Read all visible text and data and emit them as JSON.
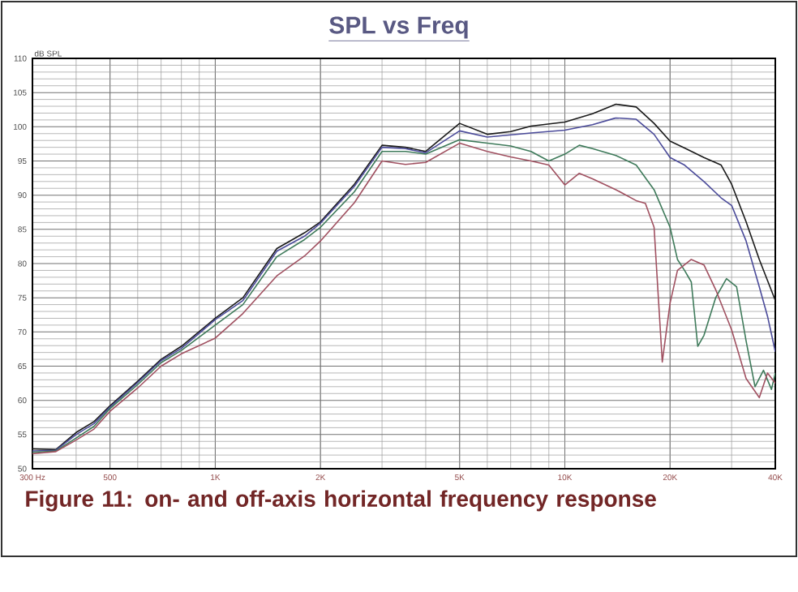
{
  "chart_data": {
    "type": "line",
    "title": "SPL vs Freq",
    "ylabel": "dB SPL",
    "annotations": [
      "Figure 11: on- and off-axis horizontal frequency response"
    ],
    "log": "x",
    "grid": true,
    "marker": "none",
    "line_style": "solid",
    "xlim": [
      300,
      40000
    ],
    "ylim": [
      50,
      110
    ],
    "xticks": [
      {
        "value": 300,
        "label": "300 Hz"
      },
      500,
      {
        "value": 1000,
        "label": "1K"
      },
      {
        "value": 2000,
        "label": "2K"
      },
      {
        "value": 5000,
        "label": "5K"
      },
      {
        "value": 10000,
        "label": "10K"
      },
      {
        "value": 20000,
        "label": "20K"
      },
      {
        "value": 40000,
        "label": "40K"
      }
    ],
    "yticks": [
      50,
      55,
      60,
      65,
      70,
      75,
      80,
      85,
      90,
      95,
      100,
      105,
      110
    ],
    "series": [
      {
        "color": "#1a1a1a",
        "x": [
          300,
          350,
          400,
          450,
          500,
          600,
          700,
          800,
          1000,
          1200,
          1500,
          1800,
          2000,
          2500,
          3000,
          3500,
          4000,
          5000,
          6000,
          7000,
          8000,
          10000,
          12000,
          14000,
          16000,
          18000,
          20000,
          22000,
          25000,
          28000,
          30000,
          33000,
          36000,
          40000
        ],
        "values": [
          52.9,
          52.8,
          55.3,
          56.9,
          59.2,
          62.8,
          66,
          67.9,
          72,
          75,
          82.2,
          84.5,
          86.1,
          91.6,
          97.3,
          97,
          96.4,
          100.5,
          98.9,
          99.3,
          100.1,
          100.7,
          101.9,
          103.3,
          102.9,
          100.5,
          97.9,
          96.9,
          95.5,
          94.4,
          91.6,
          86.1,
          80.6,
          74.6
        ]
      },
      {
        "color": "#4b4b9a",
        "x": [
          300,
          350,
          400,
          450,
          500,
          600,
          700,
          800,
          1000,
          1200,
          1500,
          1800,
          2000,
          2500,
          3000,
          3500,
          4000,
          5000,
          6000,
          8000,
          10000,
          12000,
          14000,
          16000,
          18000,
          20000,
          22000,
          25000,
          28000,
          30000,
          33000,
          36000,
          38000,
          40000
        ],
        "values": [
          52.6,
          52.7,
          55,
          56.6,
          59,
          62.6,
          65.8,
          67.6,
          71.8,
          74.6,
          81.8,
          84,
          85.9,
          91.3,
          97,
          96.8,
          96.2,
          99.4,
          98.5,
          99.1,
          99.5,
          100.3,
          101.3,
          101.1,
          98.9,
          95.5,
          94.4,
          92,
          89.6,
          88.5,
          83.3,
          76.6,
          72.3,
          67.1
        ]
      },
      {
        "color": "#3e7a5a",
        "x": [
          300,
          350,
          400,
          450,
          500,
          600,
          700,
          800,
          1000,
          1200,
          1500,
          1800,
          2000,
          2500,
          3000,
          3500,
          4000,
          5000,
          6000,
          7000,
          8000,
          9000,
          10000,
          11000,
          12000,
          14000,
          16000,
          18000,
          20000,
          21000,
          22000,
          23000,
          24000,
          25000,
          27000,
          29000,
          31000,
          33000,
          35000,
          37000,
          39000,
          40000
        ],
        "values": [
          52.4,
          52.6,
          54.5,
          56.2,
          58.8,
          62.3,
          65.5,
          67.3,
          71,
          74,
          81,
          83.5,
          85.3,
          90.5,
          96.4,
          96.4,
          96,
          98.1,
          97.6,
          97.2,
          96.4,
          95,
          96,
          97.3,
          96.8,
          95.8,
          94.4,
          90.8,
          85.3,
          80.6,
          79,
          77.3,
          67.9,
          69.5,
          75,
          77.8,
          76.6,
          68.7,
          62,
          64.4,
          61.6,
          64
        ]
      },
      {
        "color": "#a05060",
        "x": [
          300,
          350,
          400,
          450,
          500,
          600,
          700,
          800,
          1000,
          1200,
          1500,
          1800,
          2000,
          2500,
          3000,
          3500,
          4000,
          5000,
          6000,
          7000,
          8000,
          9000,
          10000,
          11000,
          12000,
          14000,
          16000,
          17000,
          18000,
          19000,
          20000,
          21000,
          23000,
          25000,
          27000,
          30000,
          33000,
          36000,
          38000,
          40000
        ],
        "values": [
          52.2,
          52.5,
          54.2,
          55.8,
          58.4,
          61.8,
          65,
          66.8,
          69.1,
          72.7,
          78.2,
          81.1,
          83.3,
          88.9,
          95,
          94.5,
          94.8,
          97.6,
          96.4,
          95.6,
          95,
          94.4,
          91.5,
          93.2,
          92.4,
          90.8,
          89.2,
          88.8,
          85.3,
          65.6,
          74.2,
          79,
          80.6,
          79.8,
          76.2,
          70.3,
          63.2,
          60.4,
          64,
          62.5
        ]
      }
    ]
  }
}
